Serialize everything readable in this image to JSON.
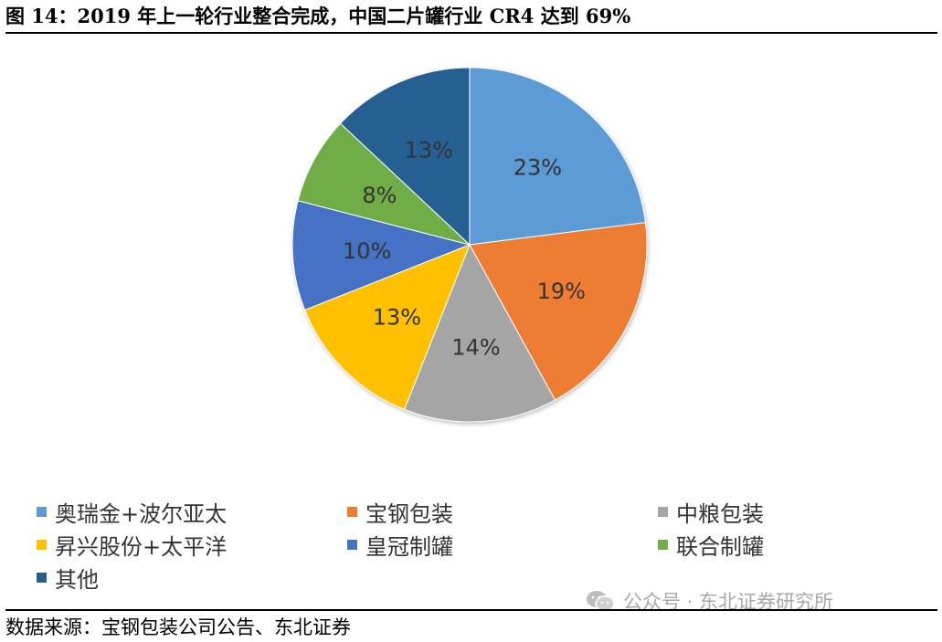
{
  "figure": {
    "title": "图 14：2019 年上一轮行业整合完成，中国二片罐行业 CR4 达到 69%",
    "source": "数据来源：宝钢包装公司公告、东北证券",
    "watermark": "公众号 · 东北证券研究所",
    "watermark_icon": "wechat-icon"
  },
  "chart_data": {
    "type": "pie",
    "title": "",
    "start_angle_deg": 0,
    "direction": "clockwise",
    "legend_position": "bottom",
    "slices": [
      {
        "label": "奥瑞金+波尔亚太",
        "value": 23,
        "value_label": "23%",
        "color": "#5b9bd5"
      },
      {
        "label": "宝钢包装",
        "value": 19,
        "value_label": "19%",
        "color": "#ed7d31"
      },
      {
        "label": "中粮包装",
        "value": 14,
        "value_label": "14%",
        "color": "#a5a5a5"
      },
      {
        "label": "昇兴股份+太平洋",
        "value": 13,
        "value_label": "13%",
        "color": "#ffc000"
      },
      {
        "label": "皇冠制罐",
        "value": 10,
        "value_label": "10%",
        "color": "#4472c4"
      },
      {
        "label": "联合制罐",
        "value": 8,
        "value_label": "8%",
        "color": "#70ad47"
      },
      {
        "label": "其他",
        "value": 13,
        "value_label": "13%",
        "color": "#255e91"
      }
    ]
  }
}
